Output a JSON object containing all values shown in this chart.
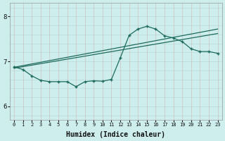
{
  "xlabel": "Humidex (Indice chaleur)",
  "bg_color": "#cdeeed",
  "line_color": "#1e6b5e",
  "grid_h_color": "#b8dbd9",
  "grid_v_color": "#d4eceb",
  "xlim": [
    -0.5,
    23.5
  ],
  "ylim": [
    5.7,
    8.3
  ],
  "yticks": [
    6,
    7,
    8
  ],
  "xticks": [
    0,
    1,
    2,
    3,
    4,
    5,
    6,
    7,
    8,
    9,
    10,
    11,
    12,
    13,
    14,
    15,
    16,
    17,
    18,
    19,
    20,
    21,
    22,
    23
  ],
  "curve_x": [
    0,
    1,
    2,
    3,
    4,
    5,
    6,
    7,
    8,
    9,
    10,
    11,
    12,
    13,
    14,
    15,
    16,
    17,
    18,
    19,
    20,
    21,
    22,
    23
  ],
  "curve_y": [
    6.88,
    6.82,
    6.68,
    6.58,
    6.55,
    6.55,
    6.55,
    6.44,
    6.55,
    6.57,
    6.56,
    6.6,
    7.08,
    7.58,
    7.72,
    7.78,
    7.72,
    7.57,
    7.52,
    7.44,
    7.28,
    7.22,
    7.22,
    7.18
  ],
  "line1_x": [
    0,
    23
  ],
  "line1_y": [
    6.85,
    7.62
  ],
  "line2_x": [
    0,
    23
  ],
  "line2_y": [
    6.87,
    7.72
  ],
  "xlabel_fontsize": 7,
  "tick_fontsize": 5,
  "ytick_fontsize": 6.5
}
